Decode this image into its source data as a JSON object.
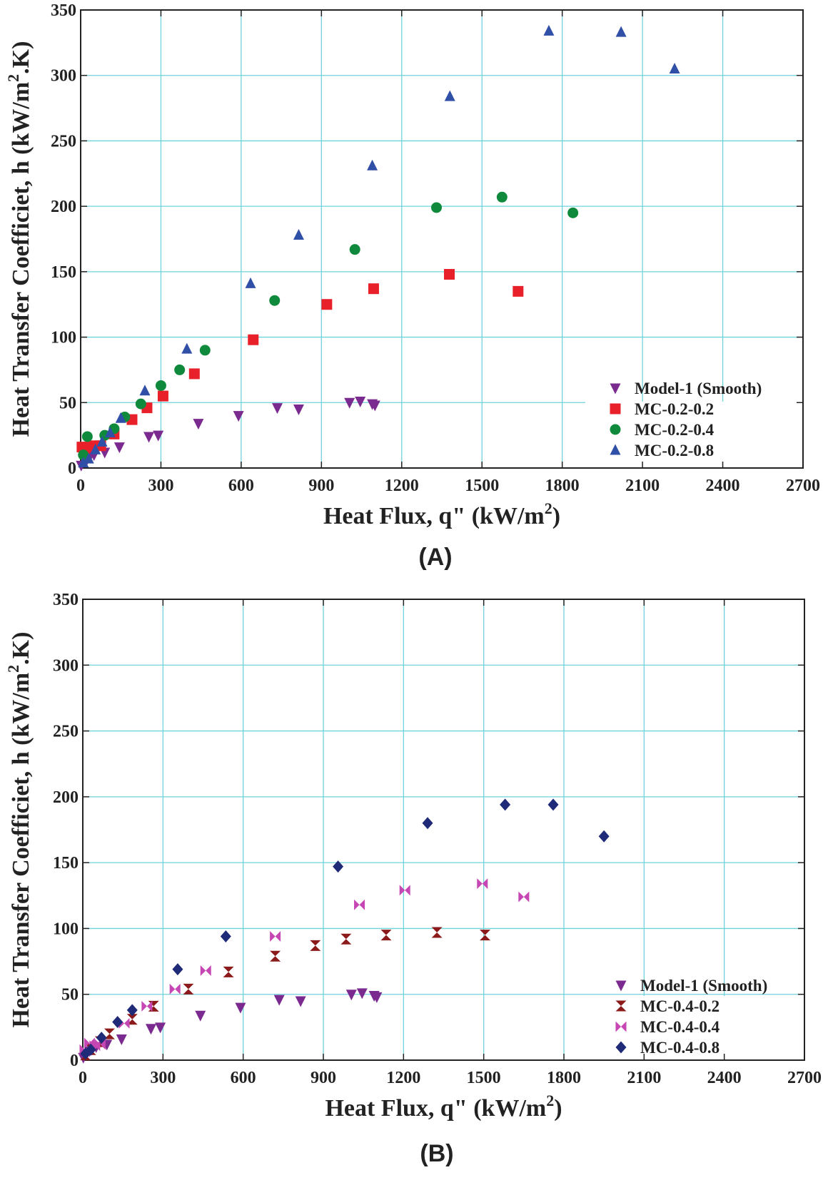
{
  "chart_data": [
    {
      "type": "scatter",
      "panel_label": "(A)",
      "xlabel": "Heat Flux, q\" (kW/m",
      "xlabel_sup": "2",
      "xlabel_end": ")",
      "ylabel": "Heat Transfer Coefficiet, h (kW/m",
      "ylabel_sup": "2",
      "ylabel_end": ".K)",
      "xlim": [
        0,
        2700
      ],
      "ylim": [
        0,
        350
      ],
      "xticks": [
        "0",
        "300",
        "600",
        "900",
        "1200",
        "1500",
        "1800",
        "2100",
        "2400",
        "2700"
      ],
      "yticks": [
        "0",
        "50",
        "100",
        "150",
        "200",
        "250",
        "300",
        "350"
      ],
      "grid": true,
      "legend_position": "bottom-right",
      "series": [
        {
          "name": "Model-1 (Smooth)",
          "marker": "triangle-down",
          "color": "#7b2a8f",
          "points": [
            [
              2,
              2
            ],
            [
              15,
              5
            ],
            [
              25,
              7
            ],
            [
              35,
              9
            ],
            [
              50,
              10
            ],
            [
              90,
              12
            ],
            [
              145,
              16
            ],
            [
              255,
              24
            ],
            [
              290,
              25
            ],
            [
              440,
              34
            ],
            [
              590,
              40
            ],
            [
              735,
              46
            ],
            [
              815,
              45
            ],
            [
              1005,
              50
            ],
            [
              1045,
              51
            ],
            [
              1090,
              49
            ],
            [
              1100,
              48
            ]
          ]
        },
        {
          "name": "MC-0.2-0.2",
          "marker": "square",
          "color": "#e8202a",
          "points": [
            [
              5,
              16
            ],
            [
              15,
              15
            ],
            [
              30,
              16
            ],
            [
              50,
              17
            ],
            [
              75,
              17
            ],
            [
              125,
              26
            ],
            [
              192,
              37
            ],
            [
              248,
              46
            ],
            [
              308,
              55
            ],
            [
              425,
              72
            ],
            [
              645,
              98
            ],
            [
              920,
              125
            ],
            [
              1095,
              137
            ],
            [
              1378,
              148
            ],
            [
              1635,
              135
            ]
          ]
        },
        {
          "name": "MC-0.2-0.4",
          "marker": "circle",
          "color": "#0f8a3c",
          "points": [
            [
              10,
              10
            ],
            [
              25,
              24
            ],
            [
              90,
              25
            ],
            [
              125,
              30
            ],
            [
              165,
              39
            ],
            [
              225,
              49
            ],
            [
              300,
              63
            ],
            [
              370,
              75
            ],
            [
              465,
              90
            ],
            [
              725,
              128
            ],
            [
              1025,
              167
            ],
            [
              1330,
              199
            ],
            [
              1575,
              207
            ],
            [
              1840,
              195
            ]
          ]
        },
        {
          "name": "MC-0.2-0.8",
          "marker": "triangle-up",
          "color": "#3050a8",
          "points": [
            [
              10,
              4
            ],
            [
              30,
              7
            ],
            [
              55,
              14
            ],
            [
              80,
              20
            ],
            [
              110,
              27
            ],
            [
              150,
              38
            ],
            [
              240,
              59
            ],
            [
              397,
              91
            ],
            [
              635,
              141
            ],
            [
              815,
              178
            ],
            [
              1090,
              231
            ],
            [
              1380,
              284
            ],
            [
              1750,
              334
            ],
            [
              2020,
              333
            ],
            [
              2220,
              305
            ]
          ]
        }
      ]
    },
    {
      "type": "scatter",
      "panel_label": "(B)",
      "xlabel": "Heat Flux, q\" (kW/m",
      "xlabel_sup": "2",
      "xlabel_end": ")",
      "ylabel": "Heat Transfer Coefficiet, h (kW/m",
      "ylabel_sup": "2",
      "ylabel_end": ".K)",
      "xlim": [
        0,
        2700
      ],
      "ylim": [
        0,
        350
      ],
      "xticks": [
        "0",
        "300",
        "600",
        "900",
        "1200",
        "1500",
        "1800",
        "2100",
        "2400",
        "2700"
      ],
      "yticks": [
        "0",
        "50",
        "100",
        "150",
        "200",
        "250",
        "300",
        "350"
      ],
      "grid": true,
      "legend_position": "bottom-right",
      "series": [
        {
          "name": "Model-1 (Smooth)",
          "marker": "triangle-down",
          "color": "#7b2a8f",
          "points": [
            [
              2,
              2
            ],
            [
              15,
              5
            ],
            [
              25,
              7
            ],
            [
              35,
              9
            ],
            [
              50,
              10
            ],
            [
              90,
              12
            ],
            [
              145,
              16
            ],
            [
              255,
              24
            ],
            [
              290,
              25
            ],
            [
              440,
              34
            ],
            [
              590,
              40
            ],
            [
              735,
              46
            ],
            [
              815,
              45
            ],
            [
              1005,
              50
            ],
            [
              1045,
              51
            ],
            [
              1090,
              49
            ],
            [
              1100,
              48
            ]
          ]
        },
        {
          "name": "MC-0.4-0.2",
          "marker": "hourglass",
          "color": "#8b1a1a",
          "points": [
            [
              10,
              4
            ],
            [
              30,
              8
            ],
            [
              65,
              14
            ],
            [
              100,
              20
            ],
            [
              185,
              31
            ],
            [
              265,
              41
            ],
            [
              395,
              54
            ],
            [
              545,
              67
            ],
            [
              720,
              79
            ],
            [
              870,
              87
            ],
            [
              985,
              92
            ],
            [
              1135,
              95
            ],
            [
              1325,
              97
            ],
            [
              1505,
              95
            ]
          ]
        },
        {
          "name": "MC-0.4-0.4",
          "marker": "bowtie",
          "color": "#c646b4",
          "points": [
            [
              8,
              8
            ],
            [
              25,
              13
            ],
            [
              45,
              11
            ],
            [
              65,
              12
            ],
            [
              155,
              28
            ],
            [
              240,
              41
            ],
            [
              345,
              54
            ],
            [
              460,
              68
            ],
            [
              720,
              94
            ],
            [
              1035,
              118
            ],
            [
              1205,
              129
            ],
            [
              1495,
              134
            ],
            [
              1650,
              124
            ]
          ]
        },
        {
          "name": "MC-0.4-0.8",
          "marker": "diamond",
          "color": "#1f2a78",
          "points": [
            [
              10,
              5
            ],
            [
              30,
              8
            ],
            [
              70,
              17
            ],
            [
              130,
              29
            ],
            [
              185,
              38
            ],
            [
              355,
              69
            ],
            [
              535,
              94
            ],
            [
              955,
              147
            ],
            [
              1290,
              180
            ],
            [
              1580,
              194
            ],
            [
              1760,
              194
            ],
            [
              1950,
              170
            ]
          ]
        }
      ]
    }
  ]
}
